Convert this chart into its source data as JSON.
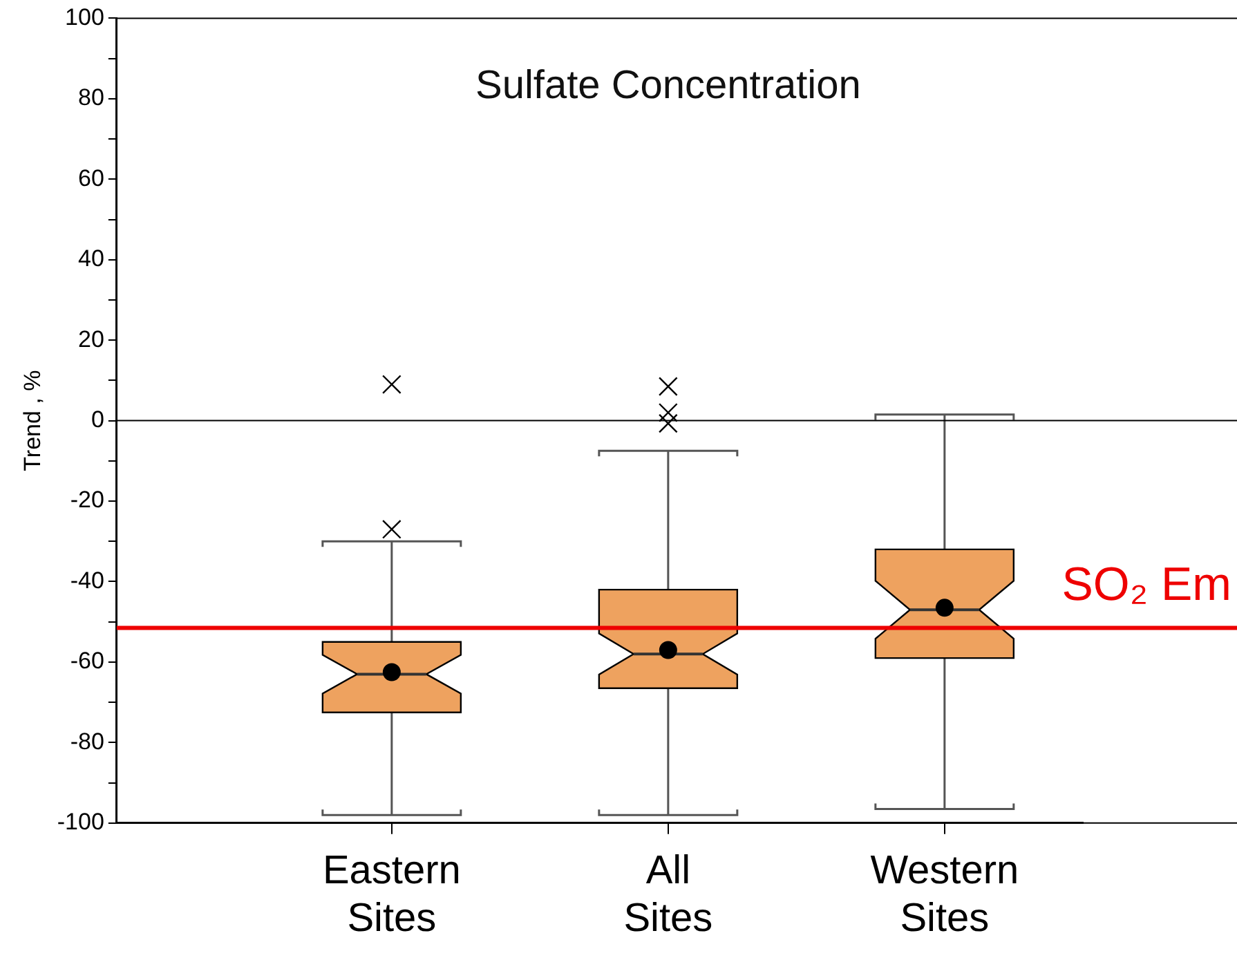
{
  "chart_data": {
    "type": "box",
    "title": "Sulfate Concentration",
    "ylabel": "Trend , %",
    "categories": [
      "Eastern Sites",
      "All Sites",
      "Western Sites"
    ],
    "color": "#eea25f",
    "marker": "circle",
    "grid": false,
    "boxes": [
      {
        "low": -98,
        "q1": -72.5,
        "median": -63,
        "q3": -55,
        "high": -30,
        "mean": -62.5,
        "outliers": [
          9,
          -27
        ]
      },
      {
        "low": -98,
        "q1": -66.5,
        "median": -58,
        "q3": -42,
        "high": -7.5,
        "mean": -57,
        "outliers": [
          8.5,
          2,
          -0.7
        ]
      },
      {
        "low": -96.5,
        "q1": -59,
        "median": -47,
        "q3": -32,
        "high": 1.5,
        "mean": -46.5
      }
    ],
    "ylim": [
      -100,
      100
    ],
    "yticks": [
      -100,
      {
        "value": -90,
        "label": null
      },
      -80,
      {
        "value": -70,
        "label": null
      },
      -60,
      {
        "value": -50,
        "label": null
      },
      -40,
      {
        "value": -30,
        "label": null
      },
      -20,
      {
        "value": -10,
        "label": null
      },
      0,
      {
        "value": 10,
        "label": null
      },
      20,
      {
        "value": 30,
        "label": null
      },
      40,
      {
        "value": 50,
        "label": null
      },
      60,
      {
        "value": 70,
        "label": null
      },
      80,
      {
        "value": 90,
        "label": null
      },
      100
    ],
    "ref_lines": [
      {
        "axis": "y",
        "value": 0,
        "label": null,
        "color": "#000000"
      },
      {
        "axis": "y",
        "value": -51.5,
        "label": "SO₂ Em",
        "color": "#ee0000"
      }
    ]
  }
}
